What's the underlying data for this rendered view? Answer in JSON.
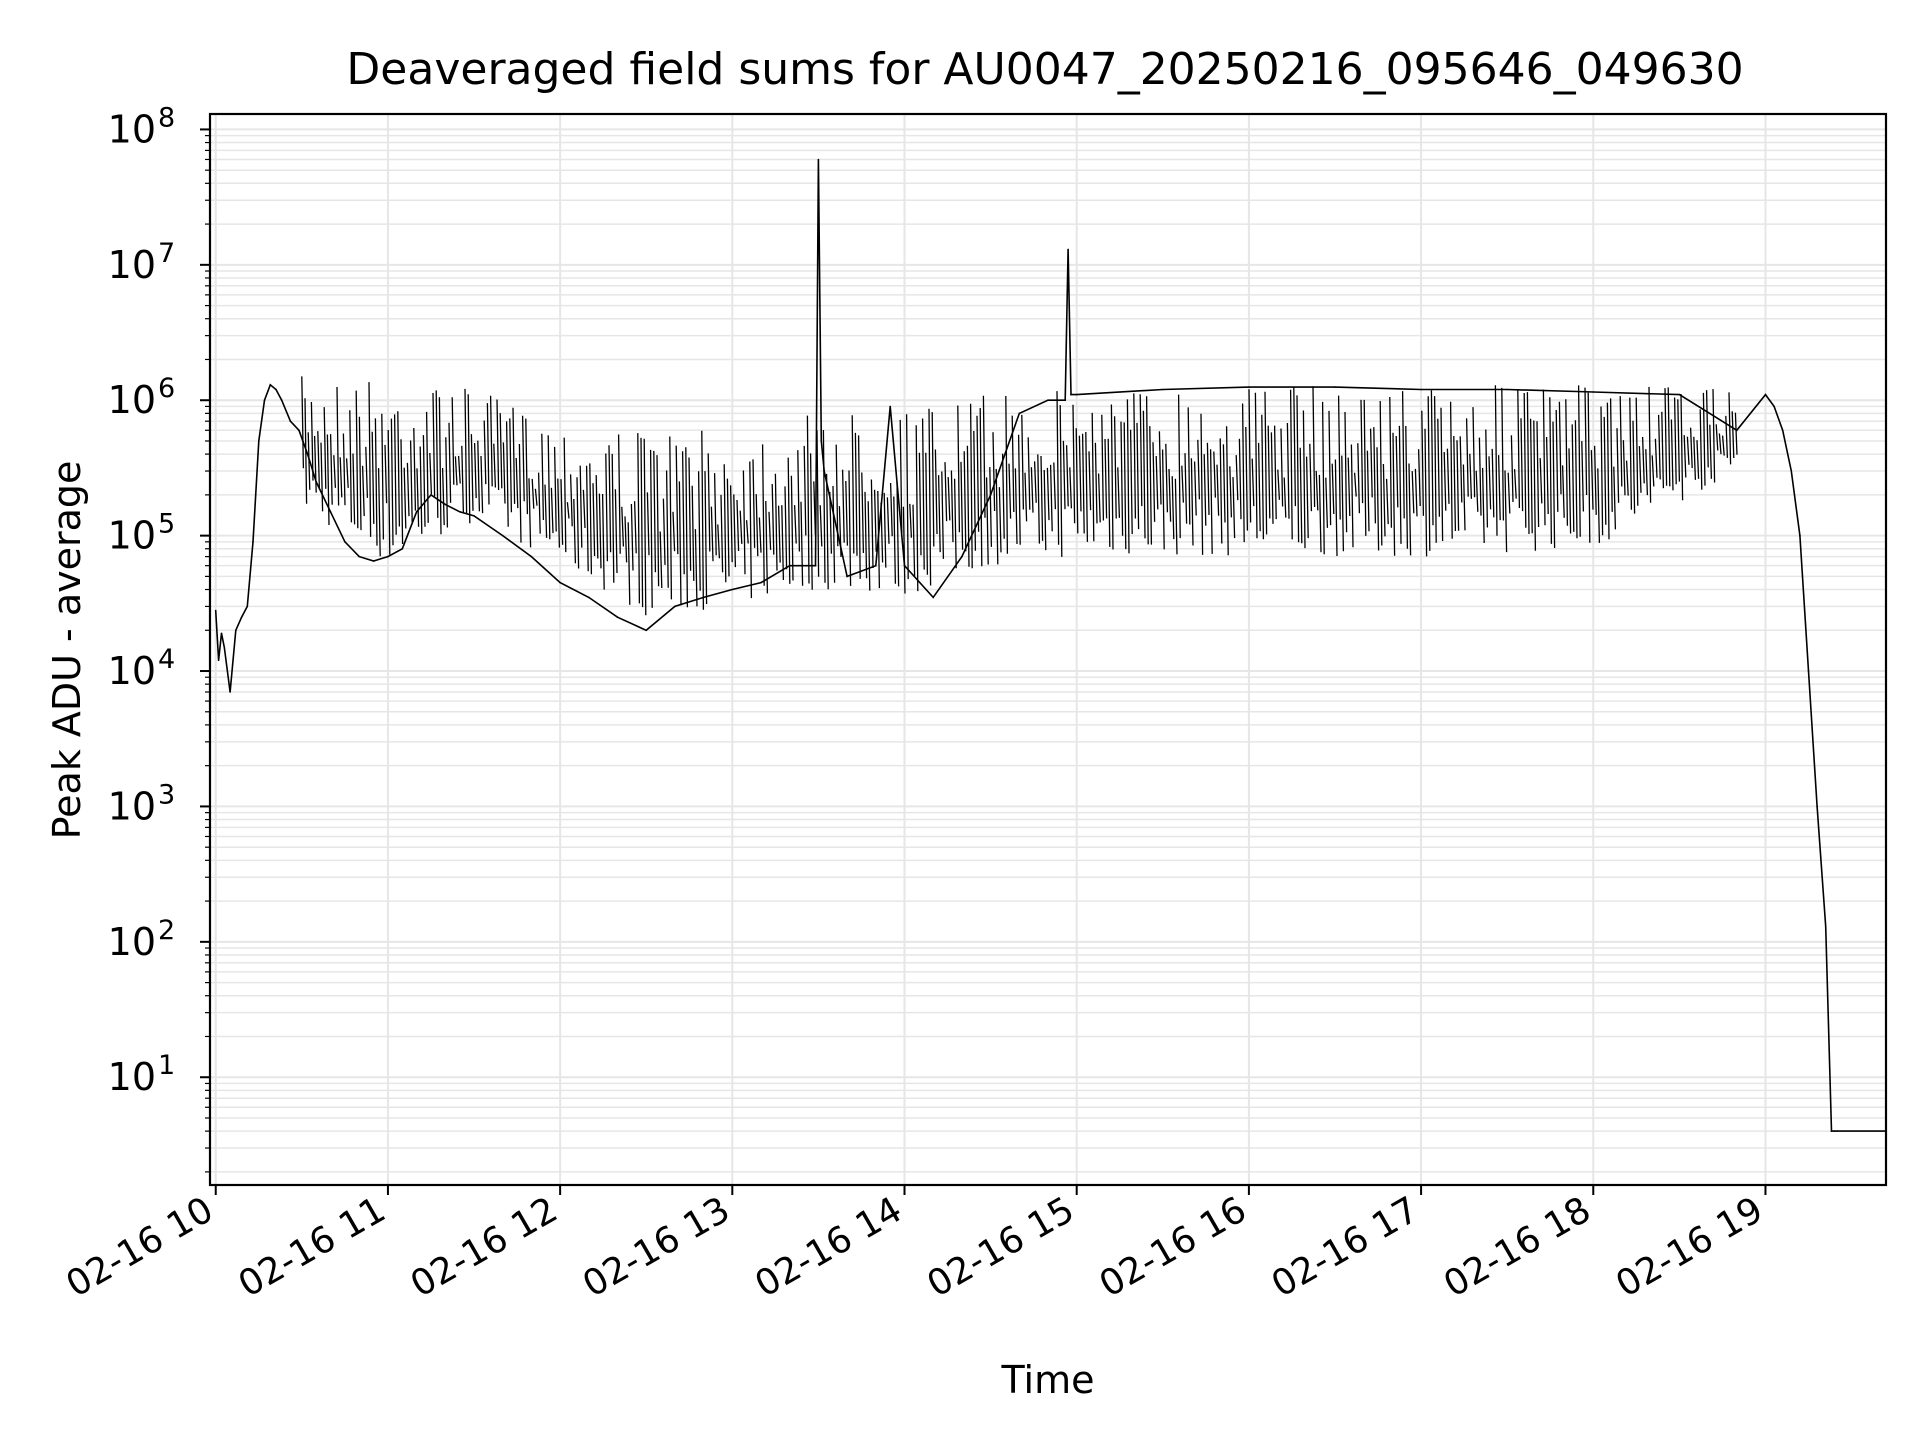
{
  "chart_data": {
    "type": "line",
    "title": "Deaveraged field sums for AU0047_20250216_095646_049630",
    "xlabel": "Time",
    "ylabel": "Peak ADU - average",
    "yscale": "log",
    "ylim": [
      1.6,
      130000000
    ],
    "xlim": [
      "2025-02-16 09:58",
      "2025-02-16 19:42"
    ],
    "grid": true,
    "line_color": "#000000",
    "grid_color": "#e6e6e6",
    "x_ticks": [
      {
        "value": "2025-02-16 10:00",
        "label": "02-16 10"
      },
      {
        "value": "2025-02-16 11:00",
        "label": "02-16 11"
      },
      {
        "value": "2025-02-16 12:00",
        "label": "02-16 12"
      },
      {
        "value": "2025-02-16 13:00",
        "label": "02-16 13"
      },
      {
        "value": "2025-02-16 14:00",
        "label": "02-16 14"
      },
      {
        "value": "2025-02-16 15:00",
        "label": "02-16 15"
      },
      {
        "value": "2025-02-16 16:00",
        "label": "02-16 16"
      },
      {
        "value": "2025-02-16 17:00",
        "label": "02-16 17"
      },
      {
        "value": "2025-02-16 18:00",
        "label": "02-16 18"
      },
      {
        "value": "2025-02-16 19:00",
        "label": "02-16 19"
      }
    ],
    "y_ticks": [
      {
        "value": 10,
        "base": "10",
        "exp": "1"
      },
      {
        "value": 100,
        "base": "10",
        "exp": "2"
      },
      {
        "value": 1000,
        "base": "10",
        "exp": "3"
      },
      {
        "value": 10000,
        "base": "10",
        "exp": "4"
      },
      {
        "value": 100000,
        "base": "10",
        "exp": "5"
      },
      {
        "value": 1000000,
        "base": "10",
        "exp": "6"
      },
      {
        "value": 10000000,
        "base": "10",
        "exp": "7"
      },
      {
        "value": 100000000,
        "base": "10",
        "exp": "8"
      }
    ],
    "series": [
      {
        "x": [
          "2025-02-16 10:00",
          "2025-02-16 10:01",
          "2025-02-16 10:02",
          "2025-02-16 10:03",
          "2025-02-16 10:05",
          "2025-02-16 10:07",
          "2025-02-16 10:09",
          "2025-02-16 10:11",
          "2025-02-16 10:13",
          "2025-02-16 10:15",
          "2025-02-16 10:17",
          "2025-02-16 10:19",
          "2025-02-16 10:21",
          "2025-02-16 10:23",
          "2025-02-16 10:26",
          "2025-02-16 10:29",
          "2025-02-16 10:32",
          "2025-02-16 10:35",
          "2025-02-16 10:40",
          "2025-02-16 10:45",
          "2025-02-16 10:50",
          "2025-02-16 10:55",
          "2025-02-16 11:00",
          "2025-02-16 11:05",
          "2025-02-16 11:10",
          "2025-02-16 11:15",
          "2025-02-16 11:20",
          "2025-02-16 11:25",
          "2025-02-16 11:30",
          "2025-02-16 11:40",
          "2025-02-16 11:50",
          "2025-02-16 12:00",
          "2025-02-16 12:10",
          "2025-02-16 12:20",
          "2025-02-16 12:30",
          "2025-02-16 12:40",
          "2025-02-16 12:50",
          "2025-02-16 13:00",
          "2025-02-16 13:10",
          "2025-02-16 13:20",
          "2025-02-16 13:29",
          "2025-02-16 13:30",
          "2025-02-16 13:31",
          "2025-02-16 13:32",
          "2025-02-16 13:40",
          "2025-02-16 13:50",
          "2025-02-16 13:55",
          "2025-02-16 14:00",
          "2025-02-16 14:10",
          "2025-02-16 14:20",
          "2025-02-16 14:30",
          "2025-02-16 14:40",
          "2025-02-16 14:50",
          "2025-02-16 14:56",
          "2025-02-16 14:57",
          "2025-02-16 14:58",
          "2025-02-16 15:00",
          "2025-02-16 15:30",
          "2025-02-16 16:00",
          "2025-02-16 16:30",
          "2025-02-16 17:00",
          "2025-02-16 17:30",
          "2025-02-16 18:00",
          "2025-02-16 18:30",
          "2025-02-16 18:50",
          "2025-02-16 19:00",
          "2025-02-16 19:03",
          "2025-02-16 19:06",
          "2025-02-16 19:09",
          "2025-02-16 19:12",
          "2025-02-16 19:15",
          "2025-02-16 19:18",
          "2025-02-16 19:21",
          "2025-02-16 19:23",
          "2025-02-16 19:24",
          "2025-02-16 19:25",
          "2025-02-16 19:42"
        ],
        "y": [
          28000,
          12000,
          19000,
          15000,
          7000,
          20000,
          25000,
          30000,
          90000,
          500000,
          1000000,
          1300000,
          1200000,
          1000000,
          700000,
          600000,
          400000,
          250000,
          150000,
          90000,
          70000,
          65000,
          70000,
          80000,
          150000,
          200000,
          170000,
          150000,
          140000,
          100000,
          70000,
          45000,
          35000,
          25000,
          20000,
          30000,
          35000,
          40000,
          45000,
          60000,
          60000,
          60000000,
          500000,
          300000,
          50000,
          60000,
          900000,
          60000,
          35000,
          70000,
          200000,
          800000,
          1000000,
          1000000,
          13000000,
          1100000,
          1100000,
          1200000,
          1250000,
          1250000,
          1200000,
          1200000,
          1150000,
          1100000,
          600000,
          1100000,
          900000,
          600000,
          300000,
          100000,
          10000,
          1000,
          130,
          4,
          4,
          4,
          4
        ],
        "range_low": [
          "2025-02-16 10:30",
          "2025-02-16 11:00",
          "2025-02-16 11:30",
          "2025-02-16 12:00",
          "2025-02-16 12:30",
          "2025-02-16 13:00",
          "2025-02-16 13:30",
          "2025-02-16 14:00",
          "2025-02-16 14:30",
          "2025-02-16 15:00",
          "2025-02-16 16:00",
          "2025-02-16 17:00",
          "2025-02-16 18:00",
          "2025-02-16 18:50"
        ],
        "range_low_values": [
          150000,
          60000,
          130000,
          60000,
          25000,
          30000,
          40000,
          35000,
          60000,
          70000,
          70000,
          70000,
          80000,
          300000
        ],
        "range_high_values": [
          1500000,
          1500000,
          1200000,
          700000,
          600000,
          600000,
          800000,
          900000,
          1100000,
          1300000,
          1300000,
          1300000,
          1300000,
          1200000
        ]
      }
    ]
  }
}
